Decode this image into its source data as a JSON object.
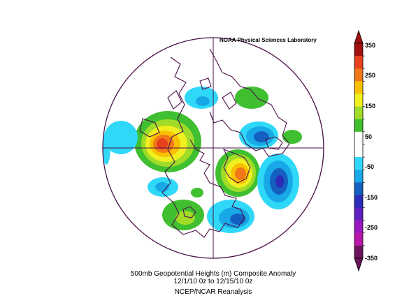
{
  "map": {
    "credit": "NOAA Physical Sciences Laboratory",
    "caption_line1": "500mb Geopotential Heights (m)   Composite Anomaly",
    "caption_line2": "12/1/10 0z  to 12/15/10 0z",
    "caption_line3": "NCEP/NCAR Reanalysis",
    "projection": "north-polar-stereographic"
  },
  "colorbar": {
    "labels": [
      "350",
      "250",
      "150",
      "50",
      "-50",
      "-150",
      "-250",
      "-350"
    ],
    "colors": [
      "#a01010",
      "#e8401c",
      "#f07818",
      "#f8c000",
      "#f0f020",
      "#a0dc28",
      "#40c030",
      "#ffffff",
      "#ffffff",
      "#30d8f8",
      "#18a8e8",
      "#1460c0",
      "#2c2cb8",
      "#6020c0",
      "#9818c0",
      "#b818a8",
      "#6c145c"
    ]
  },
  "colors": {
    "coastline": "#4a1048",
    "frame": "#4a1048"
  }
}
